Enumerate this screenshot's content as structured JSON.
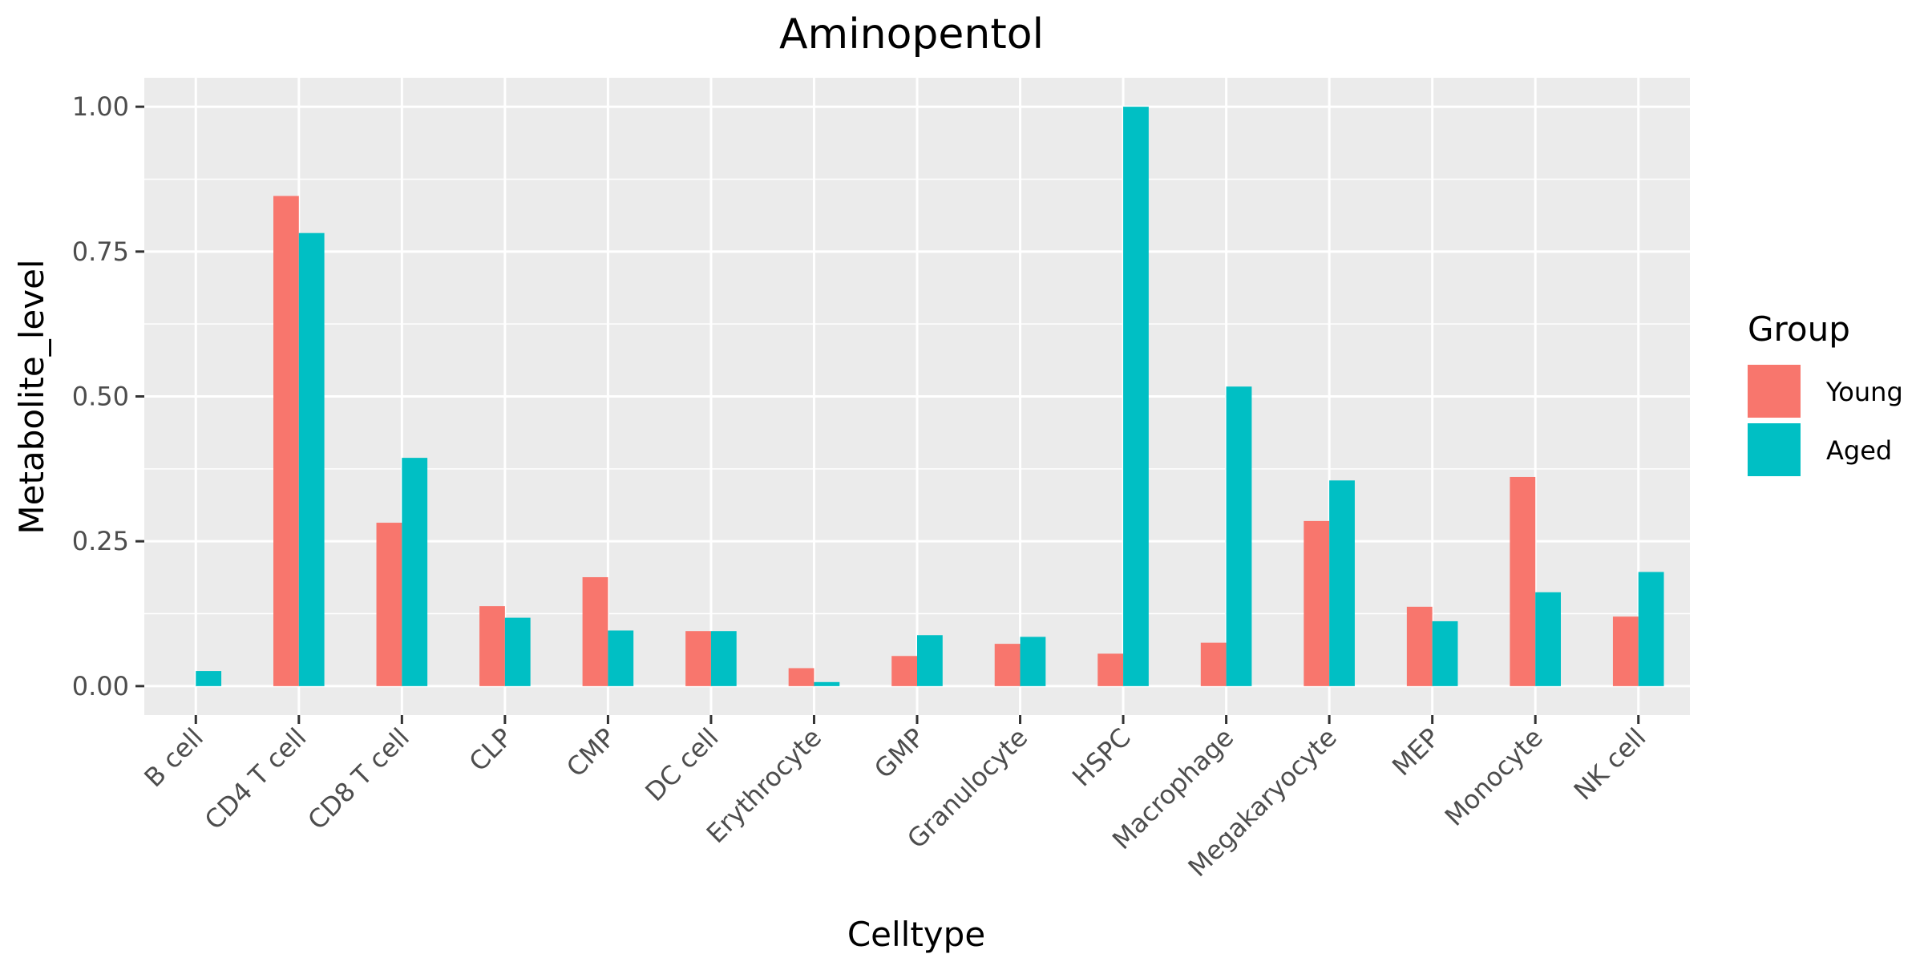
{
  "chart_data": {
    "type": "bar",
    "title": "Aminopentol",
    "xlabel": "Celltype",
    "ylabel": "Metabolite_level",
    "ylim": [
      -0.05,
      1.05
    ],
    "yticks": [
      "0.00",
      "0.25",
      "0.50",
      "0.75",
      "1.00"
    ],
    "ytick_values": [
      0,
      0.25,
      0.5,
      0.75,
      1.0
    ],
    "grid": true,
    "legend": {
      "title": "Group",
      "placement": "right"
    },
    "categories": [
      "B cell",
      "CD4 T cell",
      "CD8 T cell",
      "CLP",
      "CMP",
      "DC cell",
      "Erythrocyte",
      "GMP",
      "Granulocyte",
      "HSPC",
      "Macrophage",
      "Megakaryocyte",
      "MEP",
      "Monocyte",
      "NK cell"
    ],
    "series": [
      {
        "name": "Young",
        "color": "#F8766D",
        "values": [
          0.0,
          0.846,
          0.282,
          0.138,
          0.188,
          0.095,
          0.031,
          0.052,
          0.073,
          0.056,
          0.075,
          0.285,
          0.137,
          0.361,
          0.12
        ]
      },
      {
        "name": "Aged",
        "color": "#00BFC4",
        "values": [
          0.026,
          0.782,
          0.394,
          0.118,
          0.096,
          0.095,
          0.007,
          0.088,
          0.085,
          1.0,
          0.517,
          0.355,
          0.112,
          0.162,
          0.197
        ]
      }
    ]
  }
}
